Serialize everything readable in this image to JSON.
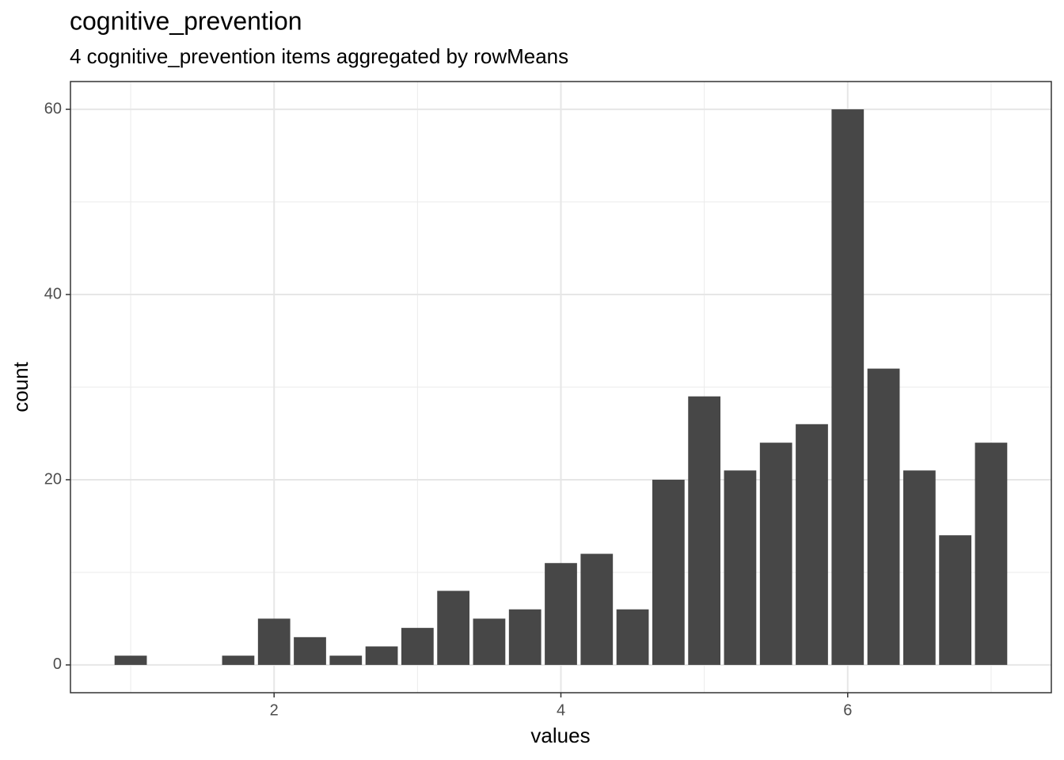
{
  "chart_data": {
    "type": "bar",
    "title": "cognitive_prevention",
    "subtitle": "4 cognitive_prevention items aggregated by rowMeans",
    "x_label": "values",
    "y_label": "count",
    "x": [
      1,
      1.75,
      2,
      2.25,
      2.5,
      2.75,
      3,
      3.25,
      3.5,
      3.75,
      4,
      4.25,
      4.5,
      4.75,
      5,
      5.25,
      5.5,
      5.75,
      6,
      6.25,
      6.5,
      6.75,
      7
    ],
    "values": [
      1,
      1,
      5,
      3,
      1,
      2,
      4,
      8,
      5,
      6,
      11,
      12,
      6,
      20,
      29,
      21,
      24,
      26,
      60,
      32,
      21,
      14,
      24
    ],
    "color": "#474747",
    "xlim": [
      0.58,
      7.42
    ],
    "xticks": [
      2,
      4,
      6
    ],
    "ylim": [
      -3,
      63
    ],
    "yticks": [
      0,
      20,
      40,
      60
    ],
    "grid": true
  }
}
